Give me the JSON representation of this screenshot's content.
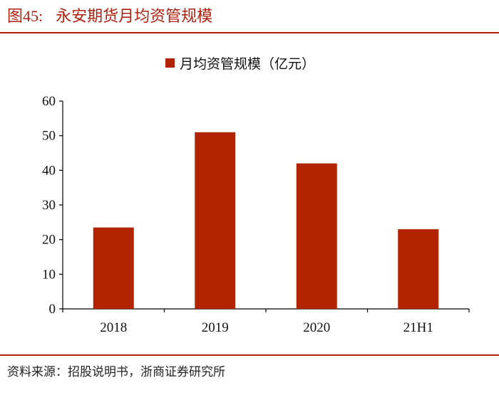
{
  "header": {
    "figure_number": "图45:",
    "title": "永安期货月均资管规模"
  },
  "footer": {
    "source": "资料来源：招股说明书，浙商证券研究所"
  },
  "colors": {
    "accent": "#b0200f",
    "bar": "#b22400"
  },
  "chart_data": {
    "type": "bar",
    "categories": [
      "2018",
      "2019",
      "2020",
      "21H1"
    ],
    "series": [
      {
        "name": "月均资管规模（亿元）",
        "values": [
          23.5,
          51,
          42,
          23
        ]
      }
    ],
    "ylim": [
      0,
      60
    ],
    "yticks": [
      0,
      10,
      20,
      30,
      40,
      50,
      60
    ],
    "legend": "top-center",
    "grid": false
  }
}
